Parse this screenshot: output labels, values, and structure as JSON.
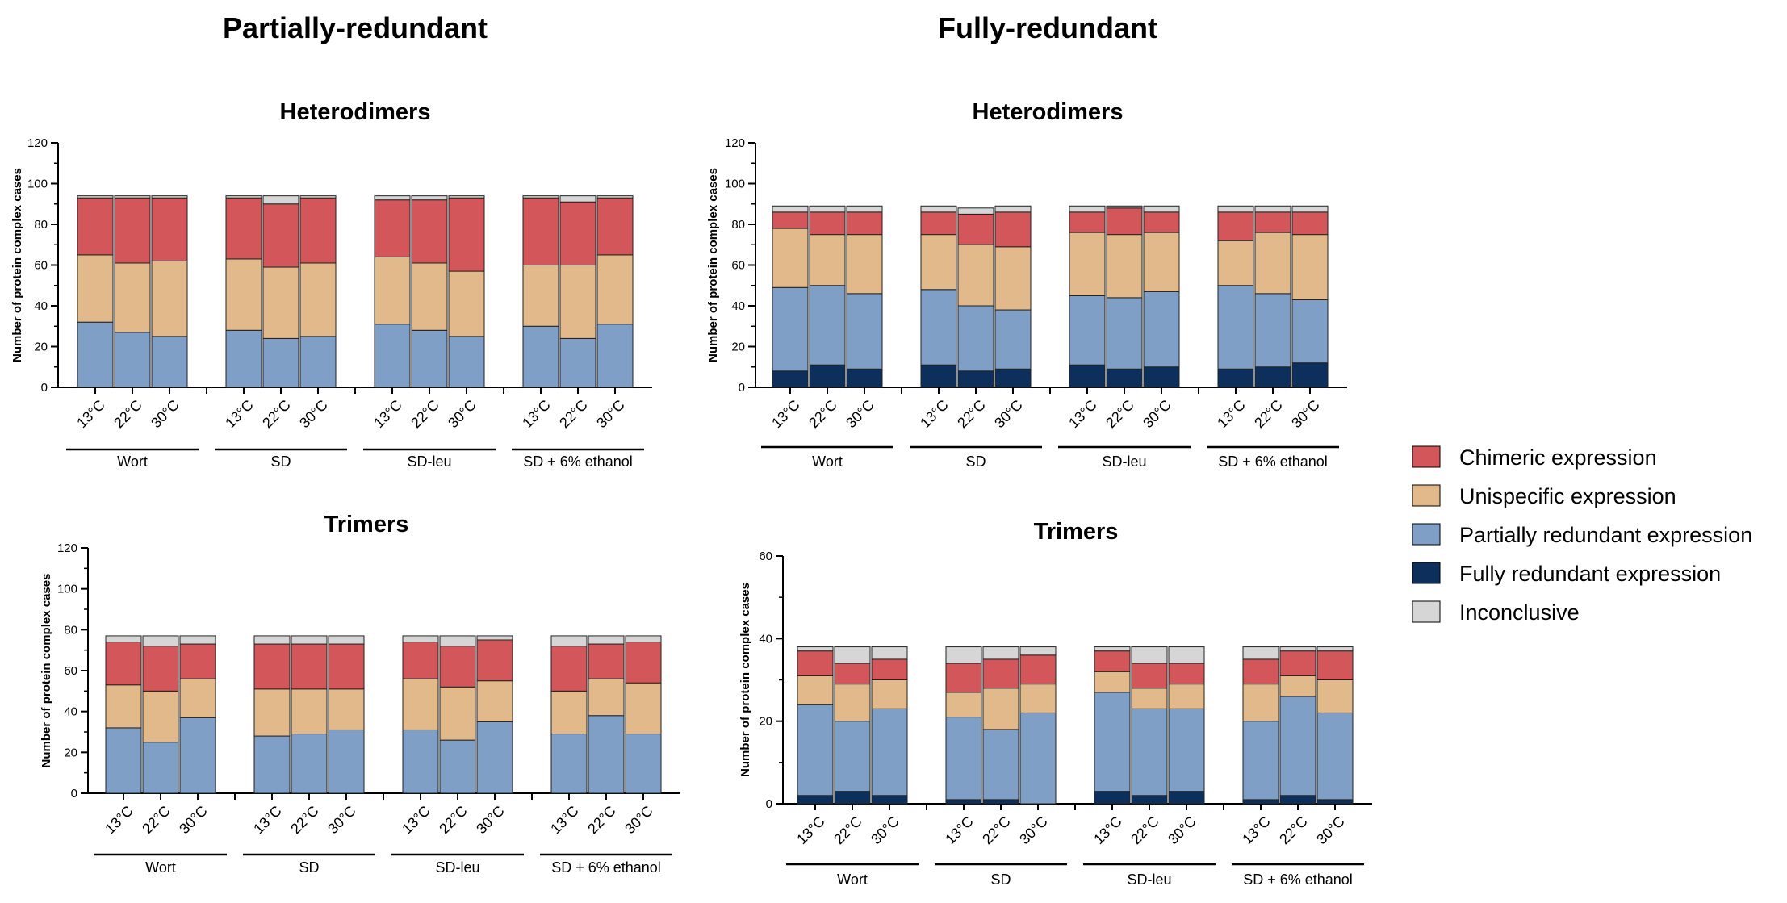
{
  "sections": [
    {
      "title": "Partially-redundant"
    },
    {
      "title": "Fully-redundant"
    }
  ],
  "legend": [
    {
      "label": "Chimeric expression",
      "color": "#d3565a"
    },
    {
      "label": "Unispecific expression",
      "color": "#e1b98a"
    },
    {
      "label": "Partially redundant expression",
      "color": "#7f9fc6"
    },
    {
      "label": "Fully redundant expression",
      "color": "#0c2f5c"
    },
    {
      "label": "Inconclusive",
      "color": "#d6d6d6"
    }
  ],
  "chart_data": [
    {
      "type": "bar",
      "stacked": true,
      "title": "Heterodimers",
      "ylabel": "Number of protein complex cases",
      "ylim": [
        0,
        120
      ],
      "yticks": [
        0,
        20,
        40,
        60,
        80,
        100,
        120
      ],
      "groups": [
        "Wort",
        "SD",
        "SD-leu",
        "SD + 6% ethanol"
      ],
      "categories": [
        "13°C",
        "22°C",
        "30°C"
      ],
      "series": [
        {
          "name": "Fully redundant expression",
          "values": [
            [
              0,
              0,
              0
            ],
            [
              0,
              0,
              0
            ],
            [
              0,
              0,
              0
            ],
            [
              0,
              0,
              0
            ]
          ]
        },
        {
          "name": "Partially redundant expression",
          "values": [
            [
              32,
              27,
              25
            ],
            [
              28,
              24,
              25
            ],
            [
              31,
              28,
              25
            ],
            [
              30,
              24,
              31
            ]
          ]
        },
        {
          "name": "Unispecific expression",
          "values": [
            [
              33,
              34,
              37
            ],
            [
              35,
              35,
              36
            ],
            [
              33,
              33,
              32
            ],
            [
              30,
              36,
              34
            ]
          ]
        },
        {
          "name": "Chimeric expression",
          "values": [
            [
              28,
              32,
              31
            ],
            [
              30,
              31,
              32
            ],
            [
              28,
              31,
              36
            ],
            [
              33,
              31,
              28
            ]
          ]
        },
        {
          "name": "Inconclusive",
          "values": [
            [
              1,
              1,
              1
            ],
            [
              1,
              4,
              1
            ],
            [
              2,
              2,
              1
            ],
            [
              1,
              3,
              1
            ]
          ]
        }
      ]
    },
    {
      "type": "bar",
      "stacked": true,
      "title": "Heterodimers",
      "ylabel": "Number of protein complex cases",
      "ylim": [
        0,
        120
      ],
      "yticks": [
        0,
        20,
        40,
        60,
        80,
        100,
        120
      ],
      "groups": [
        "Wort",
        "SD",
        "SD-leu",
        "SD + 6% ethanol"
      ],
      "categories": [
        "13°C",
        "22°C",
        "30°C"
      ],
      "series": [
        {
          "name": "Fully redundant expression",
          "values": [
            [
              8,
              11,
              9
            ],
            [
              11,
              8,
              9
            ],
            [
              11,
              9,
              10
            ],
            [
              9,
              10,
              12
            ]
          ]
        },
        {
          "name": "Partially redundant expression",
          "values": [
            [
              41,
              39,
              37
            ],
            [
              37,
              32,
              29
            ],
            [
              34,
              35,
              37
            ],
            [
              41,
              36,
              31
            ]
          ]
        },
        {
          "name": "Unispecific expression",
          "values": [
            [
              29,
              25,
              29
            ],
            [
              27,
              30,
              31
            ],
            [
              31,
              31,
              29
            ],
            [
              22,
              30,
              32
            ]
          ]
        },
        {
          "name": "Chimeric expression",
          "values": [
            [
              8,
              11,
              11
            ],
            [
              11,
              15,
              17
            ],
            [
              10,
              13,
              10
            ],
            [
              14,
              10,
              11
            ]
          ]
        },
        {
          "name": "Inconclusive",
          "values": [
            [
              3,
              3,
              3
            ],
            [
              3,
              3,
              3
            ],
            [
              3,
              1,
              3
            ],
            [
              3,
              3,
              3
            ]
          ]
        }
      ]
    },
    {
      "type": "bar",
      "stacked": true,
      "title": "Trimers",
      "ylabel": "Number of protein complex cases",
      "ylim": [
        0,
        120
      ],
      "yticks": [
        0,
        20,
        40,
        60,
        80,
        100,
        120
      ],
      "groups": [
        "Wort",
        "SD",
        "SD-leu",
        "SD + 6% ethanol"
      ],
      "categories": [
        "13°C",
        "22°C",
        "30°C"
      ],
      "series": [
        {
          "name": "Fully redundant expression",
          "values": [
            [
              0,
              0,
              0
            ],
            [
              0,
              0,
              0
            ],
            [
              0,
              0,
              0
            ],
            [
              0,
              0,
              0
            ]
          ]
        },
        {
          "name": "Partially redundant expression",
          "values": [
            [
              32,
              25,
              37
            ],
            [
              28,
              29,
              31
            ],
            [
              31,
              26,
              35
            ],
            [
              29,
              38,
              29
            ]
          ]
        },
        {
          "name": "Unispecific expression",
          "values": [
            [
              21,
              25,
              19
            ],
            [
              23,
              22,
              20
            ],
            [
              25,
              26,
              20
            ],
            [
              21,
              18,
              25
            ]
          ]
        },
        {
          "name": "Chimeric expression",
          "values": [
            [
              21,
              22,
              17
            ],
            [
              22,
              22,
              22
            ],
            [
              18,
              20,
              20
            ],
            [
              22,
              17,
              20
            ]
          ]
        },
        {
          "name": "Inconclusive",
          "values": [
            [
              3,
              5,
              4
            ],
            [
              4,
              4,
              4
            ],
            [
              3,
              5,
              2
            ],
            [
              5,
              4,
              3
            ]
          ]
        }
      ]
    },
    {
      "type": "bar",
      "stacked": true,
      "title": "Trimers",
      "ylabel": "Number of protein complex cases",
      "ylim": [
        0,
        60
      ],
      "yticks": [
        0,
        20,
        40,
        60
      ],
      "groups": [
        "Wort",
        "SD",
        "SD-leu",
        "SD + 6% ethanol"
      ],
      "categories": [
        "13°C",
        "22°C",
        "30°C"
      ],
      "series": [
        {
          "name": "Fully redundant expression",
          "values": [
            [
              2,
              3,
              2
            ],
            [
              1,
              1,
              0
            ],
            [
              3,
              2,
              3
            ],
            [
              1,
              2,
              1
            ]
          ]
        },
        {
          "name": "Partially redundant expression",
          "values": [
            [
              22,
              17,
              21
            ],
            [
              20,
              17,
              22
            ],
            [
              24,
              21,
              20
            ],
            [
              19,
              24,
              21
            ]
          ]
        },
        {
          "name": "Unispecific expression",
          "values": [
            [
              7,
              9,
              7
            ],
            [
              6,
              10,
              7
            ],
            [
              5,
              5,
              6
            ],
            [
              9,
              5,
              8
            ]
          ]
        },
        {
          "name": "Chimeric expression",
          "values": [
            [
              6,
              5,
              5
            ],
            [
              7,
              7,
              7
            ],
            [
              5,
              6,
              5
            ],
            [
              6,
              6,
              7
            ]
          ]
        },
        {
          "name": "Inconclusive",
          "values": [
            [
              1,
              4,
              3
            ],
            [
              4,
              3,
              2
            ],
            [
              1,
              4,
              4
            ],
            [
              3,
              1,
              1
            ]
          ]
        }
      ]
    }
  ]
}
